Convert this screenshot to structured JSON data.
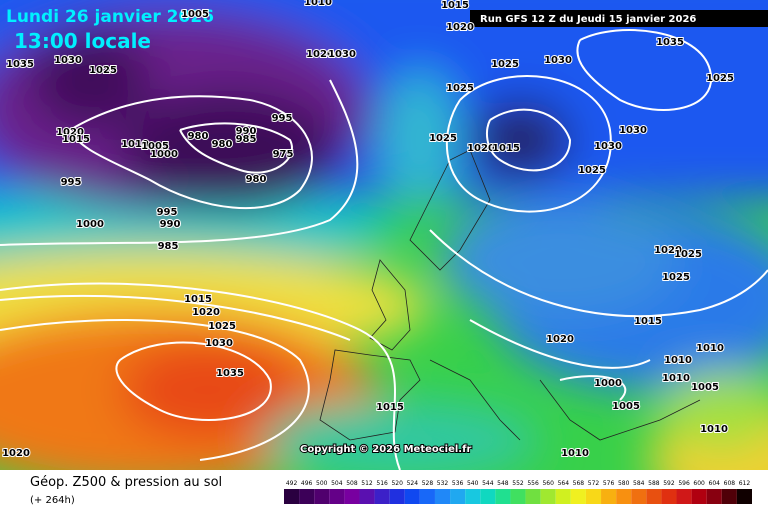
{
  "header": {
    "date": "Lundi 26 janvier 2026",
    "time": "13:00 locale",
    "run": "Run GFS 12 Z du Jeudi 15 janvier 2026"
  },
  "isobar_labels": [
    "1005",
    "1010",
    "1015",
    "1020",
    "1020",
    "1030",
    "1035",
    "1030",
    "1025",
    "995",
    "1020",
    "1015",
    "1010",
    "1005",
    "1000",
    "980",
    "980",
    "990",
    "985",
    "975",
    "980",
    "995",
    "995",
    "990",
    "985",
    "1000",
    "1025",
    "1030",
    "1035",
    "1025",
    "1025",
    "1030",
    "1025",
    "1020",
    "1015",
    "1030",
    "1025",
    "1020",
    "1025",
    "1025",
    "1015",
    "1020",
    "1025",
    "1030",
    "1035",
    "1015",
    "1020",
    "1010",
    "1010",
    "1010",
    "1005",
    "1000",
    "1005",
    "1015",
    "1010",
    "1010",
    "1020"
  ],
  "copyright": "Copyright © 2026 Meteociel.fr",
  "footer": {
    "title": "Géop. Z500 & pression au sol",
    "lead": "(+ 264h)"
  },
  "colorbar": [
    492,
    496,
    500,
    504,
    508,
    512,
    516,
    520,
    524,
    528,
    532,
    536,
    540,
    544,
    548,
    552,
    556,
    560,
    564,
    568,
    572,
    576,
    580,
    584,
    588,
    592,
    596,
    600,
    604,
    608,
    612
  ]
}
